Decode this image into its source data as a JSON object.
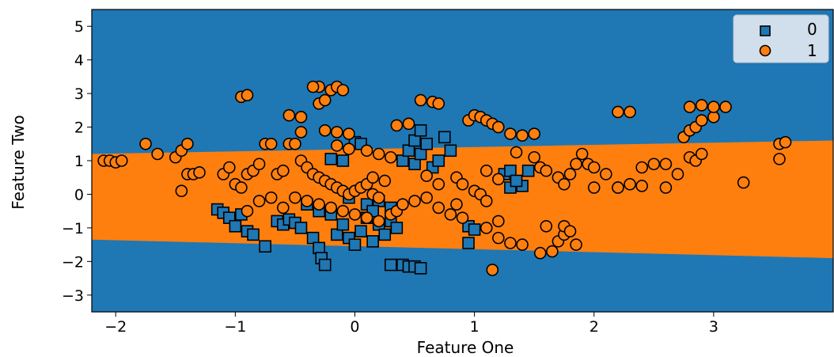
{
  "chart_data": {
    "type": "scatter",
    "subtype": "decision-region",
    "title": "",
    "xlabel": "Feature One",
    "ylabel": "Feature Two",
    "xlim": [
      -2.2,
      4.0
    ],
    "ylim": [
      -3.5,
      5.5
    ],
    "xticks": [
      -2,
      -1,
      0,
      1,
      2,
      3
    ],
    "yticks": [
      -3,
      -2,
      -1,
      0,
      1,
      2,
      3,
      4,
      5
    ],
    "xtick_labels": [
      "−2",
      "−1",
      "0",
      "1",
      "2",
      "3"
    ],
    "ytick_labels": [
      "−3",
      "−2",
      "−1",
      "0",
      "1",
      "2",
      "3",
      "4",
      "5"
    ],
    "grid": false,
    "legend_position": "top-right",
    "legend": [
      {
        "label": "0",
        "marker": "square",
        "color": "#1f77b4"
      },
      {
        "label": "1",
        "marker": "circle",
        "color": "#ff7f0e"
      }
    ],
    "regions": [
      {
        "class": "0",
        "color": "#1f77b4",
        "description": "outside band"
      },
      {
        "class": "1",
        "color": "#ff7f0e",
        "upper_boundary": [
          [
            -2.2,
            1.2
          ],
          [
            4.0,
            1.6
          ]
        ],
        "lower_boundary": [
          [
            -2.2,
            -1.35
          ],
          [
            4.0,
            -1.9
          ]
        ]
      }
    ],
    "series": [
      {
        "name": "0",
        "marker": "square",
        "color": "#1f77b4",
        "points": [
          [
            -1.15,
            -0.45
          ],
          [
            -1.1,
            -0.55
          ],
          [
            -1.05,
            -0.7
          ],
          [
            -0.95,
            -0.6
          ],
          [
            -1.0,
            -0.95
          ],
          [
            -0.9,
            -1.1
          ],
          [
            -0.85,
            -1.2
          ],
          [
            -0.75,
            -1.55
          ],
          [
            -0.65,
            -0.8
          ],
          [
            -0.6,
            -0.9
          ],
          [
            -0.55,
            -0.75
          ],
          [
            -0.5,
            -0.85
          ],
          [
            -0.45,
            -1.0
          ],
          [
            -0.35,
            -1.3
          ],
          [
            -0.3,
            -1.6
          ],
          [
            -0.28,
            -1.9
          ],
          [
            -0.25,
            -2.1
          ],
          [
            -0.2,
            -0.6
          ],
          [
            -0.15,
            -1.2
          ],
          [
            -0.1,
            -0.9
          ],
          [
            -0.05,
            -1.3
          ],
          [
            0.0,
            -1.5
          ],
          [
            0.05,
            -1.1
          ],
          [
            0.1,
            -0.7
          ],
          [
            0.15,
            -1.4
          ],
          [
            0.2,
            -0.9
          ],
          [
            0.25,
            -1.2
          ],
          [
            0.3,
            -0.8
          ],
          [
            0.35,
            -1.0
          ],
          [
            0.4,
            -2.1
          ],
          [
            0.45,
            -2.15
          ],
          [
            0.5,
            -2.15
          ],
          [
            0.55,
            -2.2
          ],
          [
            0.3,
            -2.1
          ],
          [
            -0.2,
            1.05
          ],
          [
            -0.1,
            1.0
          ],
          [
            0.0,
            1.55
          ],
          [
            0.05,
            1.5
          ],
          [
            0.4,
            1.0
          ],
          [
            0.45,
            1.3
          ],
          [
            0.5,
            0.9
          ],
          [
            0.55,
            1.2
          ],
          [
            0.6,
            1.5
          ],
          [
            0.65,
            0.8
          ],
          [
            0.7,
            1.0
          ],
          [
            0.75,
            1.7
          ],
          [
            0.8,
            1.3
          ],
          [
            0.5,
            1.6
          ],
          [
            0.55,
            1.9
          ],
          [
            0.95,
            -0.95
          ],
          [
            1.0,
            -1.05
          ],
          [
            0.95,
            -1.45
          ],
          [
            1.25,
            0.6
          ],
          [
            1.3,
            0.7
          ],
          [
            1.3,
            0.2
          ],
          [
            1.4,
            0.25
          ],
          [
            1.45,
            0.7
          ],
          [
            1.35,
            0.4
          ],
          [
            -0.3,
            -0.5
          ],
          [
            0.1,
            -0.3
          ],
          [
            0.2,
            -0.2
          ],
          [
            0.3,
            -0.4
          ],
          [
            -0.05,
            -0.1
          ],
          [
            0.15,
            -0.5
          ],
          [
            -0.4,
            -0.3
          ]
        ]
      },
      {
        "name": "1",
        "marker": "circle",
        "color": "#ff7f0e",
        "points": [
          [
            -2.1,
            1.0
          ],
          [
            -2.05,
            1.0
          ],
          [
            -2.0,
            0.95
          ],
          [
            -1.95,
            1.0
          ],
          [
            -1.75,
            1.5
          ],
          [
            -1.65,
            1.2
          ],
          [
            -1.5,
            1.1
          ],
          [
            -1.45,
            1.3
          ],
          [
            -1.4,
            1.5
          ],
          [
            -1.45,
            0.1
          ],
          [
            -1.4,
            0.6
          ],
          [
            -1.35,
            0.6
          ],
          [
            -1.3,
            0.65
          ],
          [
            -1.1,
            0.6
          ],
          [
            -1.05,
            0.8
          ],
          [
            -1.0,
            0.3
          ],
          [
            -0.95,
            0.2
          ],
          [
            -0.9,
            0.6
          ],
          [
            -0.85,
            0.7
          ],
          [
            -0.8,
            0.9
          ],
          [
            -0.75,
            1.5
          ],
          [
            -0.7,
            1.5
          ],
          [
            -0.65,
            0.6
          ],
          [
            -0.6,
            0.7
          ],
          [
            -0.55,
            1.5
          ],
          [
            -0.5,
            1.5
          ],
          [
            -0.45,
            1.0
          ],
          [
            -0.4,
            0.8
          ],
          [
            -0.35,
            0.6
          ],
          [
            -0.3,
            0.5
          ],
          [
            -0.25,
            0.4
          ],
          [
            -0.2,
            0.3
          ],
          [
            -0.15,
            0.2
          ],
          [
            -0.1,
            0.1
          ],
          [
            -0.05,
            0.0
          ],
          [
            0.0,
            0.1
          ],
          [
            0.05,
            0.2
          ],
          [
            0.1,
            0.3
          ],
          [
            0.15,
            0.0
          ],
          [
            0.2,
            -0.1
          ],
          [
            -0.3,
            -0.3
          ],
          [
            -0.2,
            -0.4
          ],
          [
            -0.1,
            -0.5
          ],
          [
            0.0,
            -0.6
          ],
          [
            0.1,
            -0.7
          ],
          [
            0.2,
            -0.8
          ],
          [
            0.3,
            -0.6
          ],
          [
            0.35,
            -0.5
          ],
          [
            0.4,
            -0.3
          ],
          [
            -0.6,
            -0.4
          ],
          [
            -0.7,
            -0.1
          ],
          [
            -0.8,
            -0.2
          ],
          [
            -0.9,
            -0.5
          ],
          [
            -0.5,
            -0.1
          ],
          [
            -0.4,
            -0.2
          ],
          [
            0.5,
            -0.2
          ],
          [
            0.6,
            -0.1
          ],
          [
            0.7,
            -0.4
          ],
          [
            0.8,
            -0.6
          ],
          [
            0.9,
            -0.7
          ],
          [
            -0.95,
            2.9
          ],
          [
            -0.9,
            2.95
          ],
          [
            -0.55,
            2.35
          ],
          [
            -0.45,
            2.3
          ],
          [
            -0.3,
            2.7
          ],
          [
            -0.25,
            2.8
          ],
          [
            -0.2,
            3.1
          ],
          [
            -0.3,
            3.2
          ],
          [
            -0.35,
            3.2
          ],
          [
            -0.15,
            3.2
          ],
          [
            -0.1,
            3.1
          ],
          [
            -0.25,
            1.9
          ],
          [
            -0.15,
            1.85
          ],
          [
            -0.05,
            1.8
          ],
          [
            -0.45,
            1.85
          ],
          [
            0.35,
            2.05
          ],
          [
            0.45,
            2.1
          ],
          [
            0.55,
            2.8
          ],
          [
            0.65,
            2.75
          ],
          [
            0.7,
            2.7
          ],
          [
            0.3,
            1.1
          ],
          [
            0.2,
            1.2
          ],
          [
            0.1,
            1.3
          ],
          [
            0.85,
            0.5
          ],
          [
            0.9,
            0.3
          ],
          [
            1.0,
            0.1
          ],
          [
            1.05,
            0.0
          ],
          [
            1.1,
            -0.2
          ],
          [
            0.95,
            2.2
          ],
          [
            1.0,
            2.35
          ],
          [
            1.05,
            2.3
          ],
          [
            1.1,
            2.2
          ],
          [
            1.15,
            2.1
          ],
          [
            1.2,
            2.0
          ],
          [
            1.3,
            1.8
          ],
          [
            1.4,
            1.75
          ],
          [
            1.5,
            1.8
          ],
          [
            1.35,
            1.25
          ],
          [
            1.5,
            1.1
          ],
          [
            1.55,
            0.8
          ],
          [
            1.6,
            0.7
          ],
          [
            1.7,
            0.5
          ],
          [
            1.75,
            0.3
          ],
          [
            1.8,
            0.6
          ],
          [
            1.85,
            0.9
          ],
          [
            1.9,
            1.2
          ],
          [
            1.95,
            0.9
          ],
          [
            2.0,
            0.8
          ],
          [
            2.1,
            0.6
          ],
          [
            2.2,
            0.2
          ],
          [
            2.3,
            0.3
          ],
          [
            2.4,
            0.8
          ],
          [
            2.5,
            0.9
          ],
          [
            2.6,
            0.9
          ],
          [
            2.7,
            0.6
          ],
          [
            2.8,
            1.1
          ],
          [
            2.85,
            1.0
          ],
          [
            2.9,
            1.2
          ],
          [
            2.75,
            1.7
          ],
          [
            2.8,
            1.9
          ],
          [
            2.85,
            2.0
          ],
          [
            2.9,
            2.2
          ],
          [
            3.0,
            2.3
          ],
          [
            2.8,
            2.6
          ],
          [
            2.9,
            2.65
          ],
          [
            3.0,
            2.6
          ],
          [
            3.1,
            2.6
          ],
          [
            2.2,
            2.45
          ],
          [
            2.3,
            2.45
          ],
          [
            3.25,
            0.35
          ],
          [
            3.55,
            1.5
          ],
          [
            3.6,
            1.55
          ],
          [
            3.55,
            1.05
          ],
          [
            1.2,
            -1.3
          ],
          [
            1.3,
            -1.45
          ],
          [
            1.4,
            -1.5
          ],
          [
            1.55,
            -1.75
          ],
          [
            1.65,
            -1.7
          ],
          [
            1.7,
            -1.4
          ],
          [
            1.75,
            -1.2
          ],
          [
            1.85,
            -1.5
          ],
          [
            1.6,
            -0.95
          ],
          [
            1.15,
            -2.25
          ],
          [
            1.1,
            -1.0
          ],
          [
            1.2,
            -0.8
          ],
          [
            0.85,
            -0.3
          ],
          [
            0.6,
            0.55
          ],
          [
            0.7,
            0.3
          ],
          [
            0.15,
            0.5
          ],
          [
            0.25,
            0.4
          ],
          [
            2.0,
            0.2
          ],
          [
            2.2,
            0.2
          ],
          [
            2.4,
            0.25
          ],
          [
            2.6,
            0.2
          ],
          [
            1.75,
            -0.95
          ],
          [
            1.8,
            -1.1
          ],
          [
            1.1,
            0.7
          ],
          [
            1.2,
            0.45
          ],
          [
            -0.15,
            1.45
          ],
          [
            -0.05,
            1.35
          ]
        ]
      }
    ]
  }
}
